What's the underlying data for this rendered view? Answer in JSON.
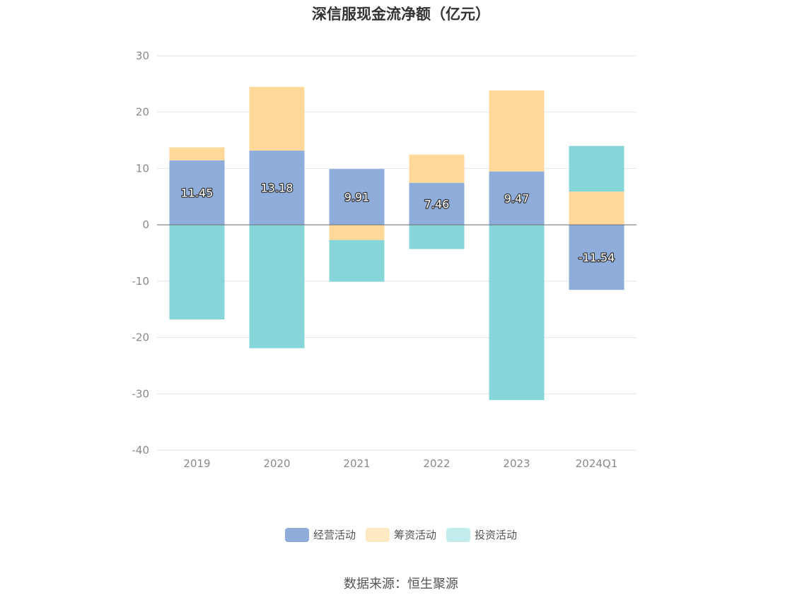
{
  "chart_data": {
    "type": "bar",
    "stacked": true,
    "title": "深信服现金流净额（亿元）",
    "categories": [
      "2019",
      "2020",
      "2021",
      "2022",
      "2023",
      "2024Q1"
    ],
    "ylim": [
      -40,
      30
    ],
    "yticks": [
      30,
      20,
      10,
      0,
      -10,
      -20,
      -30,
      -40
    ],
    "grid": true,
    "legend_position": "bottom",
    "series": [
      {
        "name": "经营活动",
        "color": "#8eadda",
        "values": [
          11.45,
          13.18,
          9.91,
          7.46,
          9.47,
          -11.54
        ],
        "labels": [
          "11.45",
          "13.18",
          "9.91",
          "7.46",
          "9.47",
          "-11.54"
        ]
      },
      {
        "name": "筹资活动",
        "color": "#ffd89a",
        "values": [
          2.3,
          11.3,
          -2.7,
          5.0,
          14.4,
          5.9
        ]
      },
      {
        "name": "投资活动",
        "color": "#86d6d9",
        "values": [
          -16.8,
          -21.9,
          -7.4,
          -4.3,
          -31.1,
          8.1
        ]
      }
    ],
    "legend": [
      {
        "name": "经营活动",
        "color": "#8eadda"
      },
      {
        "name": "筹资活动",
        "color": "#ffe8c4"
      },
      {
        "name": "投资活动",
        "color": "#c2ebec"
      }
    ]
  },
  "footer": {
    "source": "数据来源：恒生聚源"
  }
}
